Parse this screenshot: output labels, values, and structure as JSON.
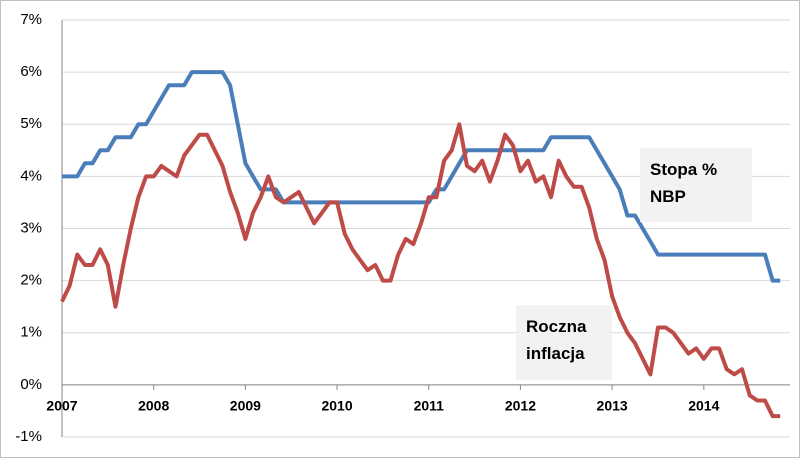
{
  "chart_data": {
    "type": "line",
    "x": [
      2007,
      2007.083,
      2007.167,
      2007.25,
      2007.333,
      2007.417,
      2007.5,
      2007.583,
      2007.667,
      2007.75,
      2007.833,
      2007.917,
      2008,
      2008.083,
      2008.167,
      2008.25,
      2008.333,
      2008.417,
      2008.5,
      2008.583,
      2008.667,
      2008.75,
      2008.833,
      2008.917,
      2009,
      2009.083,
      2009.167,
      2009.25,
      2009.333,
      2009.417,
      2009.5,
      2009.583,
      2009.667,
      2009.75,
      2009.833,
      2009.917,
      2010,
      2010.083,
      2010.167,
      2010.25,
      2010.333,
      2010.417,
      2010.5,
      2010.583,
      2010.667,
      2010.75,
      2010.833,
      2010.917,
      2011,
      2011.083,
      2011.167,
      2011.25,
      2011.333,
      2011.417,
      2011.5,
      2011.583,
      2011.667,
      2011.75,
      2011.833,
      2011.917,
      2012,
      2012.083,
      2012.167,
      2012.25,
      2012.333,
      2012.417,
      2012.5,
      2012.583,
      2012.667,
      2012.75,
      2012.833,
      2012.917,
      2013,
      2013.083,
      2013.167,
      2013.25,
      2013.333,
      2013.417,
      2013.5,
      2013.583,
      2013.667,
      2013.75,
      2013.833,
      2013.917,
      2014,
      2014.083,
      2014.167,
      2014.25,
      2014.333,
      2014.417,
      2014.5,
      2014.583,
      2014.667,
      2014.75,
      2014.833
    ],
    "series": [
      {
        "name": "Stopa % NBP",
        "color": "#4a7ebb",
        "values": [
          4,
          4,
          4,
          4.25,
          4.25,
          4.5,
          4.5,
          4.75,
          4.75,
          4.75,
          5,
          5,
          5.25,
          5.5,
          5.75,
          5.75,
          5.75,
          6,
          6,
          6,
          6,
          6,
          5.75,
          5,
          4.25,
          4,
          3.75,
          3.75,
          3.75,
          3.5,
          3.5,
          3.5,
          3.5,
          3.5,
          3.5,
          3.5,
          3.5,
          3.5,
          3.5,
          3.5,
          3.5,
          3.5,
          3.5,
          3.5,
          3.5,
          3.5,
          3.5,
          3.5,
          3.5,
          3.75,
          3.75,
          4,
          4.25,
          4.5,
          4.5,
          4.5,
          4.5,
          4.5,
          4.5,
          4.5,
          4.5,
          4.5,
          4.5,
          4.5,
          4.75,
          4.75,
          4.75,
          4.75,
          4.75,
          4.75,
          4.5,
          4.25,
          4,
          3.75,
          3.25,
          3.25,
          3,
          2.75,
          2.5,
          2.5,
          2.5,
          2.5,
          2.5,
          2.5,
          2.5,
          2.5,
          2.5,
          2.5,
          2.5,
          2.5,
          2.5,
          2.5,
          2.5,
          2,
          2
        ]
      },
      {
        "name": "Roczna inflacja",
        "color": "#be4b48",
        "values": [
          1.6,
          1.9,
          2.5,
          2.3,
          2.3,
          2.6,
          2.3,
          1.5,
          2.3,
          3.0,
          3.6,
          4.0,
          4.0,
          4.2,
          4.1,
          4.0,
          4.4,
          4.6,
          4.8,
          4.8,
          4.5,
          4.2,
          3.7,
          3.3,
          2.8,
          3.3,
          3.6,
          4.0,
          3.6,
          3.5,
          3.6,
          3.7,
          3.4,
          3.1,
          3.3,
          3.5,
          3.5,
          2.9,
          2.6,
          2.4,
          2.2,
          2.3,
          2.0,
          2.0,
          2.5,
          2.8,
          2.7,
          3.1,
          3.6,
          3.6,
          4.3,
          4.5,
          5.0,
          4.2,
          4.1,
          4.3,
          3.9,
          4.3,
          4.8,
          4.6,
          4.1,
          4.3,
          3.9,
          4.0,
          3.6,
          4.3,
          4.0,
          3.8,
          3.8,
          3.4,
          2.8,
          2.4,
          1.7,
          1.3,
          1.0,
          0.8,
          0.5,
          0.2,
          1.1,
          1.1,
          1.0,
          0.8,
          0.6,
          0.7,
          0.5,
          0.7,
          0.7,
          0.3,
          0.2,
          0.3,
          -0.2,
          -0.3,
          -0.3,
          -0.6,
          -0.6
        ]
      }
    ],
    "xlim": [
      2007,
      2014.94
    ],
    "xticks": [
      2007,
      2008,
      2009,
      2010,
      2011,
      2012,
      2013,
      2014
    ],
    "ylim": [
      -1,
      7
    ],
    "yticks": [
      {
        "value": -1,
        "label": "-1%"
      },
      {
        "value": 0,
        "label": "0%"
      },
      {
        "value": 1,
        "label": "1%"
      },
      {
        "value": 2,
        "label": "2%"
      },
      {
        "value": 3,
        "label": "3%"
      },
      {
        "value": 4,
        "label": "4%"
      },
      {
        "value": 5,
        "label": "5%"
      },
      {
        "value": 6,
        "label": "6%"
      },
      {
        "value": 7,
        "label": "7%"
      }
    ],
    "grid": true
  }
}
